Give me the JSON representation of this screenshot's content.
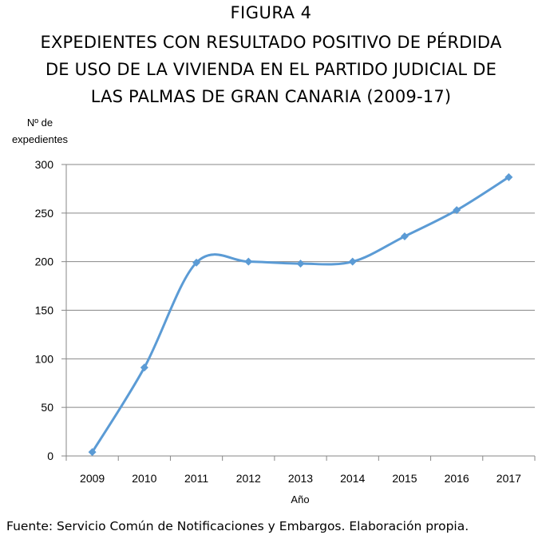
{
  "figure_label": "FIGURA 4",
  "title_lines": [
    "EXPEDIENTES CON RESULTADO POSITIVO DE PÉRDIDA",
    "DE USO DE LA VIVIENDA EN EL PARTIDO JUDICIAL DE",
    "LAS PALMAS DE GRAN CANARIA (2009-17)"
  ],
  "source": "Fuente: Servicio Común de Notificaciones y Embargos. Elaboración propia.",
  "chart_data": {
    "type": "line",
    "title": "EXPEDIENTES CON RESULTADO POSITIVO DE PÉRDIDA DE USO DE LA VIVIENDA EN EL PARTIDO JUDICIAL DE LAS PALMAS DE GRAN CANARIA (2009-17)",
    "ylabel_lines": [
      "Nº de",
      "expedientes"
    ],
    "xlabel": "Año",
    "categories": [
      "2009",
      "2010",
      "2011",
      "2012",
      "2013",
      "2014",
      "2015",
      "2016",
      "2017"
    ],
    "values": [
      4,
      91,
      199,
      200,
      198,
      200,
      226,
      253,
      287
    ],
    "ylim": [
      0,
      300
    ],
    "yticks": [
      0,
      50,
      100,
      150,
      200,
      250,
      300
    ],
    "grid": true,
    "legend": "none",
    "smooth": true,
    "line_color": "#5b9bd5"
  }
}
